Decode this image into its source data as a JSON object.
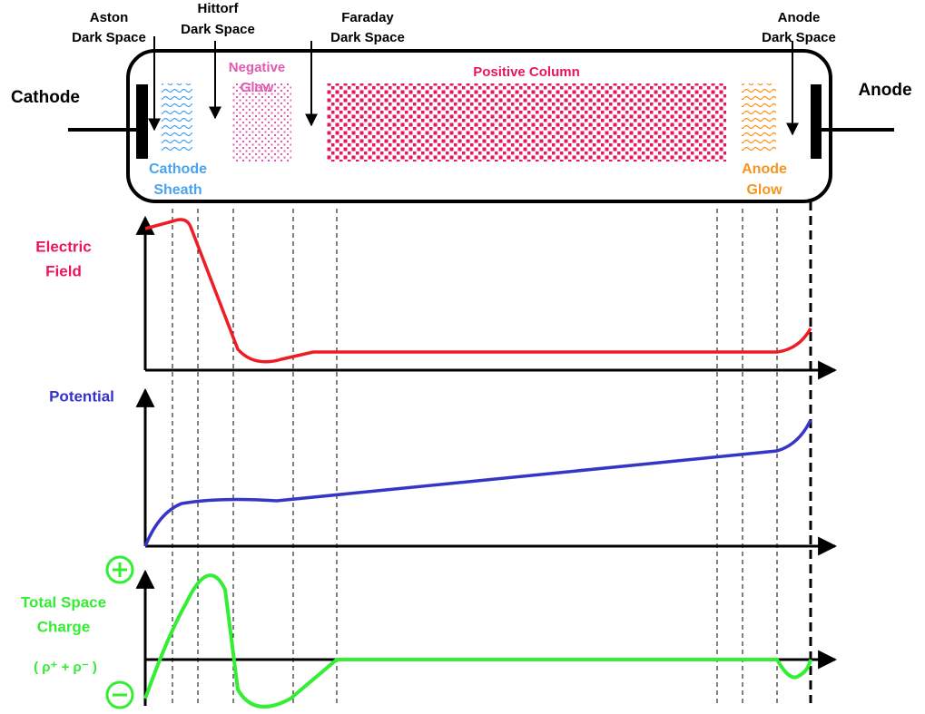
{
  "dark_spaces": {
    "aston": [
      "Aston",
      "Dark Space"
    ],
    "hittorf": [
      "Hittorf",
      "Dark Space"
    ],
    "faraday": [
      "Faraday",
      "Dark Space"
    ],
    "anode": [
      "Anode",
      "Dark Space"
    ]
  },
  "electrodes": {
    "cathode": "Cathode",
    "anode": "Anode"
  },
  "regions": {
    "negative_glow": [
      "Negative",
      "Glow"
    ],
    "positive_column": "Positive Column",
    "cathode_sheath": [
      "Cathode",
      "Sheath"
    ],
    "anode_glow": [
      "Anode",
      "Glow"
    ]
  },
  "plots": {
    "electric_field": [
      "Electric",
      "Field"
    ],
    "potential": "Potential",
    "space_charge": [
      "Total Space",
      "Charge",
      "( ρ⁺ + ρ⁻ )"
    ]
  }
}
